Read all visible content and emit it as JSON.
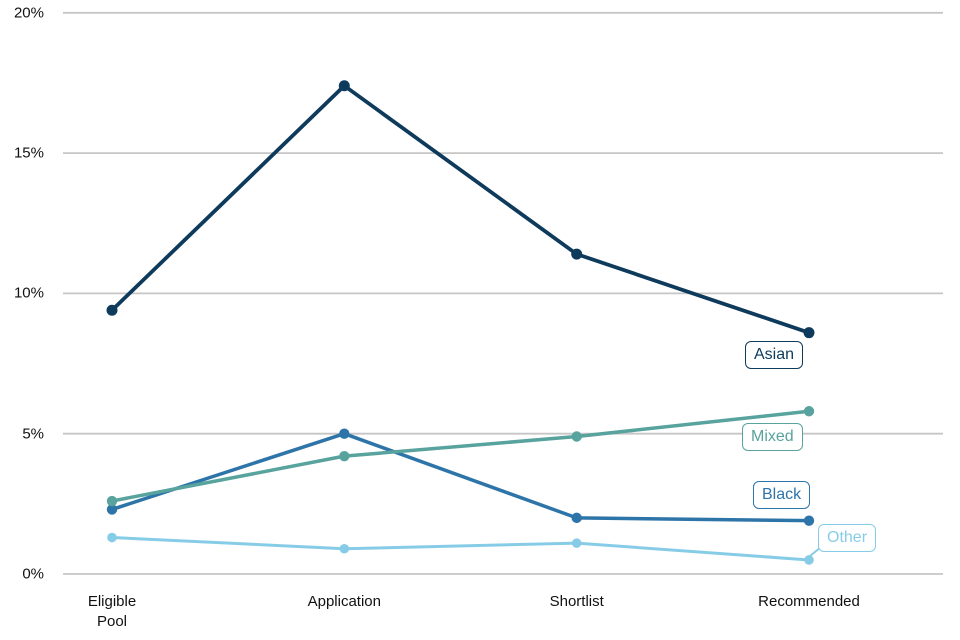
{
  "chart_data": {
    "type": "line",
    "title": "",
    "xlabel": "",
    "ylabel": "",
    "unit": "%",
    "categories": [
      "Eligible Pool",
      "Application",
      "Shortlist",
      "Recommended"
    ],
    "categories_display": [
      [
        "Eligible",
        "Pool"
      ],
      [
        "Application"
      ],
      [
        "Shortlist"
      ],
      [
        "Recommended"
      ]
    ],
    "series": [
      {
        "name": "Asian",
        "color": "#0e3a5c",
        "values": [
          9.4,
          17.4,
          11.4,
          8.6
        ]
      },
      {
        "name": "Black",
        "color": "#2d74a9",
        "values": [
          2.3,
          5.0,
          2.0,
          1.9
        ]
      },
      {
        "name": "Mixed",
        "color": "#58a39d",
        "values": [
          2.6,
          4.2,
          4.9,
          5.8
        ]
      },
      {
        "name": "Other",
        "color": "#87cce7",
        "values": [
          1.3,
          0.9,
          1.1,
          0.5
        ]
      }
    ],
    "ylim": [
      0,
      20
    ],
    "yticks": [
      0,
      5,
      10,
      15,
      20
    ],
    "ytick_labels": [
      "0%",
      "5%",
      "10%",
      "15%",
      "20%"
    ],
    "grid": "horizontal",
    "legend": "direct-labels-at-line-end",
    "colors": {
      "gridline": "#c6c6c6",
      "tick_text": "#111111"
    }
  }
}
